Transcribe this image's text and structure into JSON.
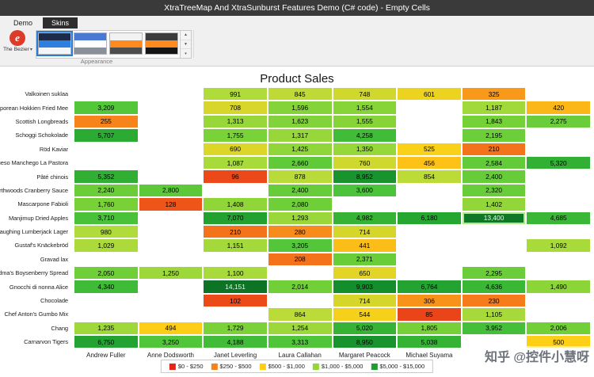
{
  "window": {
    "title": "XtraTreeMap And XtraSunburst Features Demo (C# code) - Empty Cells"
  },
  "ribbon": {
    "tabs": [
      {
        "label": "Demo"
      },
      {
        "label": "Skins"
      }
    ],
    "active_tab": "Skins",
    "skin_button": {
      "label": "The Bezier",
      "glyph": "e"
    },
    "skins": [
      {
        "name": "The Bezier",
        "selected": true,
        "stripes": [
          "#1c2b4a",
          "#2f7fe0",
          "#f2f5fa"
        ]
      },
      {
        "name": "skin-2",
        "selected": false,
        "stripes": [
          "#4a79d4",
          "#ffffff",
          "#8a9099"
        ]
      },
      {
        "name": "skin-3",
        "selected": false,
        "stripes": [
          "#f2f2f2",
          "#ff8a1e",
          "#4d4d4d"
        ]
      },
      {
        "name": "skin-4",
        "selected": false,
        "stripes": [
          "#3c3c3c",
          "#ff8a1e",
          "#141414"
        ]
      }
    ],
    "gallery_buttons": {
      "up": "▲",
      "down": "▼",
      "dropdown": "▾"
    },
    "group_label": "Appearance"
  },
  "chart_data": {
    "type": "heatmap",
    "title": "Product Sales",
    "columns": [
      "Andrew Fuller",
      "Anne Dodsworth",
      "Janet Leverling",
      "Laura Callahan",
      "Margaret Peacock",
      "Michael Suyama",
      "",
      ""
    ],
    "rows": [
      {
        "name": "Valkoinen suklaa",
        "values": [
          null,
          null,
          991,
          845,
          748,
          601,
          325,
          null
        ]
      },
      {
        "name": "Singaporean Hokkien Fried Mee",
        "values": [
          3209,
          null,
          708,
          1596,
          1554,
          null,
          1187,
          420
        ]
      },
      {
        "name": "Scottish Longbreads",
        "values": [
          255,
          null,
          1313,
          1623,
          1555,
          null,
          1843,
          2275
        ]
      },
      {
        "name": "Schoggi Schokolade",
        "values": [
          5707,
          null,
          1755,
          1317,
          4258,
          null,
          2195,
          null
        ]
      },
      {
        "name": "Röd Kaviar",
        "values": [
          null,
          null,
          690,
          1425,
          1350,
          525,
          210,
          null
        ]
      },
      {
        "name": "Queso Manchego La Pastora",
        "values": [
          null,
          null,
          1087,
          2660,
          760,
          456,
          2584,
          5320
        ]
      },
      {
        "name": "Pâté chinois",
        "values": [
          5352,
          null,
          96,
          878,
          8952,
          854,
          2400,
          null
        ]
      },
      {
        "name": "Northwoods Cranberry Sauce",
        "values": [
          2240,
          2800,
          null,
          2400,
          3600,
          null,
          2320,
          null
        ]
      },
      {
        "name": "Mascarpone Fabioli",
        "values": [
          1760,
          128,
          1408,
          2080,
          null,
          null,
          1402,
          null
        ]
      },
      {
        "name": "Manjimup Dried Apples",
        "values": [
          3710,
          null,
          7070,
          1293,
          4982,
          6180,
          13400,
          4685
        ]
      },
      {
        "name": "Laughing Lumberjack Lager",
        "values": [
          980,
          null,
          210,
          280,
          714,
          null,
          null,
          null
        ]
      },
      {
        "name": "Gustaf's Knäckebröd",
        "values": [
          1029,
          null,
          1151,
          3205,
          441,
          null,
          null,
          1092
        ]
      },
      {
        "name": "Gravad lax",
        "values": [
          null,
          null,
          null,
          208,
          2371,
          null,
          null,
          null
        ]
      },
      {
        "name": "Grandma's Boysenberry Spread",
        "values": [
          2050,
          1250,
          1100,
          null,
          650,
          null,
          2295,
          null
        ]
      },
      {
        "name": "Gnocchi di nonna Alice",
        "values": [
          4340,
          null,
          14151,
          2014,
          9903,
          6764,
          4636,
          1490
        ]
      },
      {
        "name": "Chocolade",
        "values": [
          null,
          null,
          102,
          null,
          714,
          306,
          230,
          null
        ]
      },
      {
        "name": "Chef Anton's Gumbo Mix",
        "values": [
          null,
          null,
          null,
          864,
          544,
          85,
          1105,
          null
        ]
      },
      {
        "name": "Chang",
        "values": [
          1235,
          494,
          1729,
          1254,
          5020,
          1805,
          3952,
          2006
        ]
      },
      {
        "name": "Carnarvon Tigers",
        "values": [
          6750,
          3250,
          4188,
          3313,
          8950,
          5038,
          null,
          500
        ]
      }
    ],
    "highlighted_cell": {
      "row_index": 9,
      "col_index": 6
    },
    "legend": [
      {
        "label": "$0 - $250",
        "color": "#e42517"
      },
      {
        "label": "$250 - $500",
        "color": "#f6821b"
      },
      {
        "label": "$500 - $1,000",
        "color": "#fdd017"
      },
      {
        "label": "$1,000 - $5,000",
        "color": "#8fd838"
      },
      {
        "label": "$5,000 - $15,000",
        "color": "#1e9e30"
      }
    ],
    "color_stops": [
      [
        0,
        "#e42517"
      ],
      [
        250,
        "#f6821b"
      ],
      [
        500,
        "#fdd017"
      ],
      [
        900,
        "#b5dc3b"
      ],
      [
        1800,
        "#76d138"
      ],
      [
        3500,
        "#4cc43a"
      ],
      [
        6000,
        "#27a832"
      ],
      [
        10000,
        "#148c2c"
      ],
      [
        15000,
        "#0b6e24"
      ]
    ]
  },
  "watermark": {
    "text": "知乎 @控件小慧呀"
  }
}
